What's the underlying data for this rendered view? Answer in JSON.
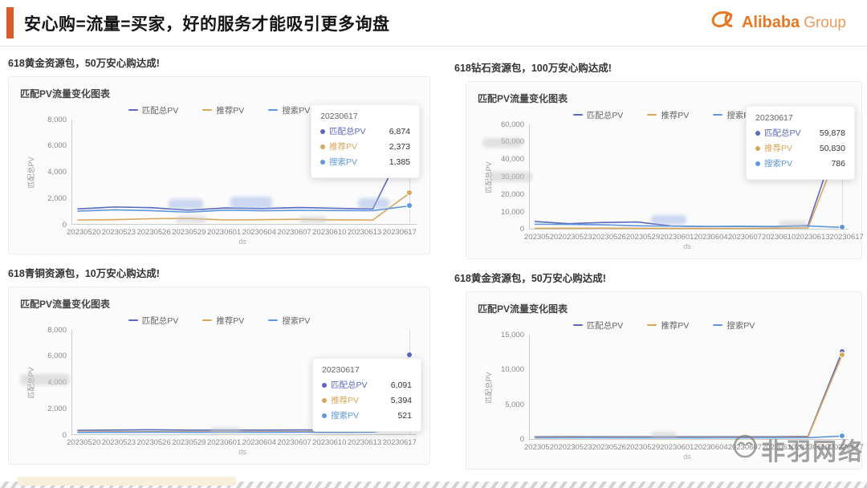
{
  "header": {
    "title": "安心购=流量=买家，好的服务才能吸引更多询盘",
    "logo": {
      "brand": "Alibaba",
      "suffix": "Group"
    }
  },
  "watermark": {
    "text": "非羽网络"
  },
  "colors": {
    "accent": "#D95B2B",
    "brand_orange": "#E87722",
    "series_total": "#5B69BE",
    "series_recommend": "#D9A75C",
    "series_search": "#5E97DB"
  },
  "sections": [
    {
      "caption": "618黄金资源包，50万安心购达成!"
    },
    {
      "caption": "618钻石资源包，100万安心购达成!"
    },
    {
      "caption": "618青铜资源包，10万安心购达成!"
    },
    {
      "caption": "618黄金资源包，50万安心购达成!"
    }
  ],
  "chart_data": [
    {
      "type": "line",
      "title": "匹配PV流量变化图表",
      "xlabel": "ds",
      "ylabel": "匹配总PV",
      "legend_position": "top",
      "grid": false,
      "categories": [
        "20230520",
        "20230523",
        "20230526",
        "20230529",
        "20230601",
        "20230604",
        "20230607",
        "20230610",
        "20230613",
        "20230617"
      ],
      "ylim": [
        0,
        8000
      ],
      "yticks": [
        0,
        2000,
        4000,
        6000,
        8000
      ],
      "series": [
        {
          "name": "匹配总PV",
          "color": "#5B69BE",
          "values": [
            1150,
            1300,
            1250,
            1050,
            1230,
            1180,
            1260,
            1200,
            1150,
            6874
          ]
        },
        {
          "name": "推荐PV",
          "color": "#D9A75C",
          "values": [
            300,
            330,
            400,
            430,
            300,
            330,
            360,
            310,
            300,
            2373
          ]
        },
        {
          "name": "搜索PV",
          "color": "#5E97DB",
          "values": [
            980,
            1080,
            1020,
            900,
            1060,
            1010,
            1040,
            1030,
            1020,
            1385
          ]
        }
      ],
      "tooltip": {
        "date": "20230617",
        "rows": [
          {
            "label": "匹配总PV",
            "value": "6,874"
          },
          {
            "label": "推荐PV",
            "value": "2,373"
          },
          {
            "label": "搜索PV",
            "value": "1,385"
          }
        ]
      }
    },
    {
      "type": "line",
      "title": "匹配PV流量变化图表",
      "xlabel": "ds",
      "ylabel": "匹配总PV",
      "legend_position": "top",
      "grid": false,
      "categories": [
        "20230520",
        "20230523",
        "20230526",
        "20230529",
        "20230601",
        "20230604",
        "20230607",
        "20230610",
        "20230613",
        "20230617"
      ],
      "ylim": [
        0,
        60000
      ],
      "yticks": [
        0,
        10000,
        20000,
        30000,
        40000,
        50000,
        60000
      ],
      "series": [
        {
          "name": "匹配总PV",
          "color": "#5B69BE",
          "values": [
            4200,
            2900,
            3600,
            3900,
            1600,
            1300,
            1400,
            1300,
            1900,
            59878
          ]
        },
        {
          "name": "推荐PV",
          "color": "#D9A75C",
          "values": [
            250,
            300,
            350,
            280,
            220,
            200,
            220,
            260,
            500,
            50830
          ]
        },
        {
          "name": "搜索PV",
          "color": "#5E97DB",
          "values": [
            2600,
            2500,
            2300,
            1700,
            1500,
            1300,
            1350,
            1200,
            1600,
            786
          ]
        }
      ],
      "tooltip": {
        "date": "20230617",
        "rows": [
          {
            "label": "匹配总PV",
            "value": "59,878"
          },
          {
            "label": "推荐PV",
            "value": "50,830"
          },
          {
            "label": "搜索PV",
            "value": "786"
          }
        ]
      }
    },
    {
      "type": "line",
      "title": "匹配PV流量变化图表",
      "xlabel": "ds",
      "ylabel": "匹配总PV",
      "legend_position": "top",
      "grid": false,
      "categories": [
        "20230520",
        "20230523",
        "20230526",
        "20230529",
        "20230601",
        "20230604",
        "20230607",
        "20230610",
        "20230613",
        "20230617"
      ],
      "ylim": [
        0,
        8000
      ],
      "yticks": [
        0,
        2000,
        4000,
        6000,
        8000
      ],
      "series": [
        {
          "name": "匹配总PV",
          "color": "#5B69BE",
          "values": [
            300,
            320,
            340,
            310,
            320,
            310,
            330,
            320,
            350,
            6091
          ]
        },
        {
          "name": "推荐PV",
          "color": "#D9A75C",
          "values": [
            180,
            190,
            200,
            190,
            195,
            190,
            200,
            195,
            220,
            5394
          ]
        },
        {
          "name": "搜索PV",
          "color": "#5E97DB",
          "values": [
            140,
            150,
            160,
            150,
            155,
            150,
            160,
            155,
            170,
            521
          ]
        }
      ],
      "tooltip": {
        "date": "20230617",
        "rows": [
          {
            "label": "匹配总PV",
            "value": "6,091"
          },
          {
            "label": "推荐PV",
            "value": "5,394"
          },
          {
            "label": "搜索PV",
            "value": "521"
          }
        ]
      }
    },
    {
      "type": "line",
      "title": "匹配PV流量变化图表",
      "xlabel": "ds",
      "ylabel": "匹配总PV",
      "legend_position": "top",
      "grid": false,
      "categories": [
        "20230520",
        "20230523",
        "20230526",
        "20230529",
        "20230601",
        "20230604",
        "20230607",
        "20230610",
        "20230613",
        "20230617"
      ],
      "ylim": [
        0,
        15000
      ],
      "yticks": [
        0,
        5000,
        10000,
        15000
      ],
      "series": [
        {
          "name": "匹配总PV",
          "color": "#5B69BE",
          "values": [
            320,
            340,
            330,
            320,
            330,
            320,
            330,
            320,
            380,
            12600
          ]
        },
        {
          "name": "推荐PV",
          "color": "#D9A75C",
          "values": [
            240,
            250,
            245,
            240,
            245,
            240,
            250,
            245,
            300,
            12100
          ]
        },
        {
          "name": "搜索PV",
          "color": "#5E97DB",
          "values": [
            170,
            180,
            175,
            170,
            175,
            170,
            180,
            175,
            200,
            430
          ]
        }
      ],
      "tooltip": null
    }
  ]
}
